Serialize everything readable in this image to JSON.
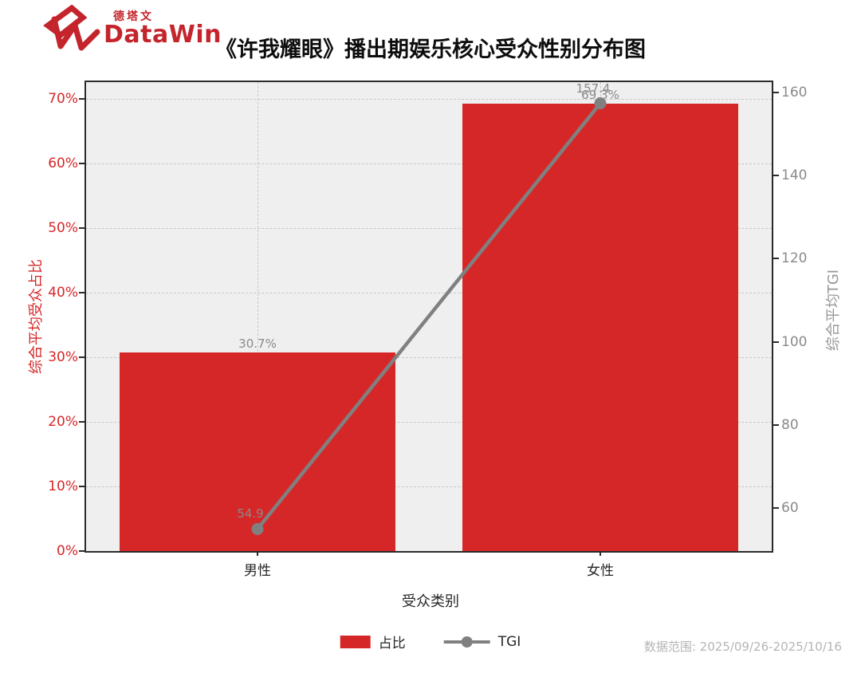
{
  "brand": {
    "logo_cn": "德塔文",
    "logo_en": "DataWin",
    "color": "#c4242c"
  },
  "title": "《许我耀眼》播出期娱乐核心受众性别分布图",
  "footer": {
    "legend": [
      {
        "label": "占比",
        "type": "bar",
        "color": "#d62728"
      },
      {
        "label": "TGI",
        "type": "line",
        "color": "#808080"
      }
    ],
    "data_range": "数据范围: 2025/09/26-2025/10/16"
  },
  "chart_data": {
    "type": "bar+line combo",
    "title": "《许我耀眼》播出期娱乐核心受众性别分布图",
    "categories": [
      "男性",
      "女性"
    ],
    "xlabel": "受众类别",
    "series": [
      {
        "name": "占比",
        "type": "bar",
        "axis": "left",
        "unit": "%",
        "values": [
          30.7,
          69.3
        ],
        "labels": [
          "30.7%",
          "69.3%"
        ],
        "color": "#d62728"
      },
      {
        "name": "TGI",
        "type": "line",
        "axis": "right",
        "values": [
          54.9,
          157.4
        ],
        "labels": [
          "54.9",
          "157.4"
        ],
        "color": "#808080"
      }
    ],
    "left_axis": {
      "label": "综合平均受众占比",
      "color": "#d62728",
      "tick_values": [
        0,
        10,
        20,
        30,
        40,
        50,
        60,
        70
      ],
      "tick_labels": [
        "0%",
        "10%",
        "20%",
        "30%",
        "40%",
        "50%",
        "60%",
        "70%"
      ],
      "range": [
        0,
        72.6
      ]
    },
    "right_axis": {
      "label": "综合平均TGI",
      "color": "#8a8a8a",
      "tick_values": [
        60,
        80,
        100,
        120,
        140,
        160
      ],
      "tick_labels": [
        "60",
        "80",
        "100",
        "120",
        "140",
        "160"
      ],
      "range": [
        49.6,
        162.5
      ]
    },
    "grid": "dashed, horizontal at left-axis ticks, vertical at category centers",
    "plot_background": "#efefef",
    "legend_position": "bottom center"
  }
}
